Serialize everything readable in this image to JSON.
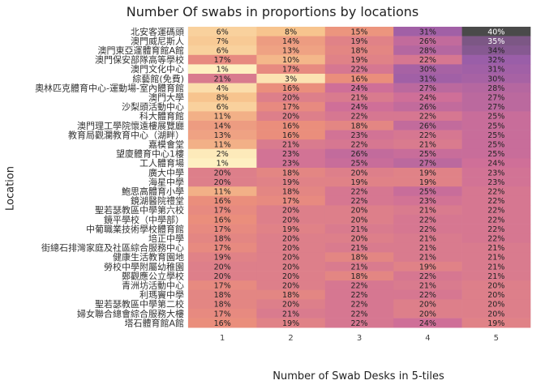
{
  "chart_data": {
    "type": "heatmap",
    "title": "Number Of swabs in proportions by locations",
    "xlabel": "Number of Swab Desks in 5-tiles",
    "ylabel": "Location",
    "columns": [
      "1",
      "2",
      "3",
      "4",
      "5"
    ],
    "value_suffix": "%",
    "value_range": [
      0,
      40
    ],
    "colorscale": [
      "#fff6c8",
      "#f7c48e",
      "#ea8e7c",
      "#cf6f98",
      "#9a5ea8",
      "#4a4a4a"
    ],
    "rows": [
      {
        "label": "北安客運碼頭",
        "values": [
          6,
          8,
          15,
          31,
          40
        ]
      },
      {
        "label": "澳門威尼斯人",
        "values": [
          7,
          14,
          19,
          26,
          35
        ]
      },
      {
        "label": "澳門東亞運體育館A館",
        "values": [
          6,
          13,
          18,
          28,
          34
        ]
      },
      {
        "label": "澳門保安部隊高等學校",
        "values": [
          17,
          10,
          19,
          22,
          32
        ]
      },
      {
        "label": "澳門文化中心",
        "values": [
          1,
          17,
          22,
          30,
          31
        ]
      },
      {
        "label": "綜藝館(免費)",
        "values": [
          21,
          3,
          16,
          31,
          30
        ]
      },
      {
        "label": "奧林匹克體育中心-運動場-室內體育館",
        "values": [
          4,
          16,
          24,
          27,
          28
        ]
      },
      {
        "label": "澳門大學",
        "values": [
          8,
          20,
          21,
          24,
          27
        ]
      },
      {
        "label": "沙梨頭活動中心",
        "values": [
          6,
          17,
          24,
          26,
          27
        ]
      },
      {
        "label": "科大體育館",
        "values": [
          11,
          20,
          22,
          22,
          25
        ]
      },
      {
        "label": "澳門理工學院懷遠樓展覽廳",
        "values": [
          14,
          16,
          18,
          26,
          25
        ]
      },
      {
        "label": "教育局觀瀾教育中心（湖畔）",
        "values": [
          13,
          16,
          23,
          22,
          25
        ]
      },
      {
        "label": "嘉模會堂",
        "values": [
          11,
          21,
          22,
          21,
          25
        ]
      },
      {
        "label": "望廈體育中心1樓",
        "values": [
          2,
          23,
          26,
          25,
          25
        ]
      },
      {
        "label": "工人體育場",
        "values": [
          1,
          23,
          25,
          27,
          24
        ]
      },
      {
        "label": "廣大中學",
        "values": [
          20,
          18,
          20,
          19,
          23
        ]
      },
      {
        "label": "海星中學",
        "values": [
          20,
          19,
          19,
          19,
          23
        ]
      },
      {
        "label": "鮑思高體育小學",
        "values": [
          11,
          18,
          22,
          25,
          22
        ]
      },
      {
        "label": "鏡湖醫院禮堂",
        "values": [
          16,
          17,
          22,
          23,
          22
        ]
      },
      {
        "label": "聖若瑟教區中學第六校",
        "values": [
          17,
          20,
          20,
          21,
          22
        ]
      },
      {
        "label": "鏡平學校（中學部）",
        "values": [
          16,
          20,
          20,
          22,
          22
        ]
      },
      {
        "label": "中葡職業技術學校體育館",
        "values": [
          17,
          19,
          21,
          22,
          22
        ]
      },
      {
        "label": "培正中學",
        "values": [
          18,
          20,
          20,
          21,
          22
        ]
      },
      {
        "label": "街總石排灣家庭及社區綜合服務中心",
        "values": [
          17,
          20,
          21,
          21,
          21
        ]
      },
      {
        "label": "健康生活教育園地",
        "values": [
          19,
          20,
          18,
          21,
          21
        ]
      },
      {
        "label": "勞校中學附屬幼稚園",
        "values": [
          20,
          20,
          21,
          19,
          21
        ]
      },
      {
        "label": "鄭觀應公立學校",
        "values": [
          20,
          20,
          18,
          22,
          21
        ]
      },
      {
        "label": "青洲坊活動中心",
        "values": [
          17,
          20,
          22,
          21,
          20
        ]
      },
      {
        "label": "利瑪竇中學",
        "values": [
          18,
          18,
          22,
          22,
          20
        ]
      },
      {
        "label": "聖若瑟教區中學第二校",
        "values": [
          18,
          20,
          22,
          20,
          20
        ]
      },
      {
        "label": "婦女聯合總會綜合服務大樓",
        "values": [
          17,
          21,
          22,
          20,
          20
        ]
      },
      {
        "label": "塔石體育館A館",
        "values": [
          16,
          19,
          22,
          24,
          19
        ]
      }
    ]
  }
}
